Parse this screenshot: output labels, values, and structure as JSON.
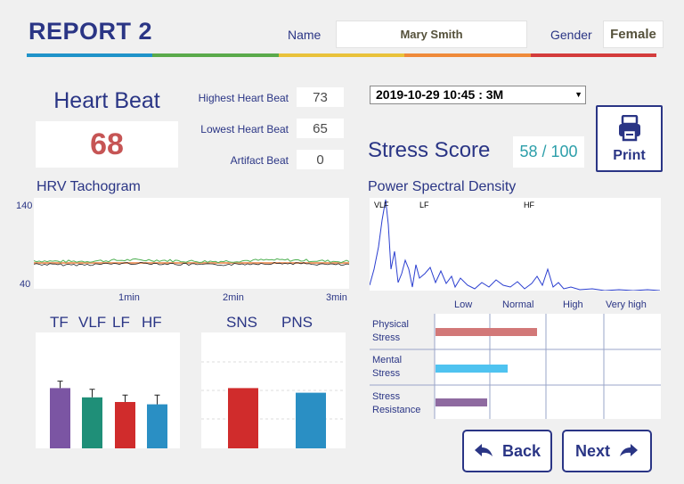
{
  "header": {
    "title": "REPORT 2",
    "name_label": "Name",
    "name_value": "Mary Smith",
    "gender_label": "Gender",
    "gender_value": "Female",
    "rainbow_colors": [
      "#1f93c9",
      "#5aaa4b",
      "#e9c23a",
      "#ef8a3a",
      "#d43c3c"
    ]
  },
  "heart_beat": {
    "title": "Heart Beat",
    "value": "68",
    "highest_label": "Highest Heart Beat",
    "highest_value": "73",
    "lowest_label": "Lowest Heart Beat",
    "lowest_value": "65",
    "artifact_label": "Artifact Beat",
    "artifact_value": "0"
  },
  "session_select": {
    "selected": "2019-10-29 10:45 : 3M"
  },
  "stress": {
    "title": "Stress Score",
    "value": "58 / 100"
  },
  "print_button": {
    "label": "Print",
    "icon": "printer-icon"
  },
  "hrv": {
    "title": "HRV Tachogram",
    "y_max": "140",
    "y_min": "40",
    "x_ticks": [
      "1min",
      "2min",
      "3min"
    ]
  },
  "psd": {
    "title": "Power Spectral Density",
    "bands": [
      "VLF",
      "LF",
      "HF"
    ]
  },
  "levels": {
    "headers": [
      "Low",
      "Normal",
      "High",
      "Very high"
    ],
    "rows": [
      {
        "line1": "Physical",
        "line2": "Stress",
        "color": "#d27878",
        "level": 0.45
      },
      {
        "line1": "Mental",
        "line2": "Stress",
        "color": "#4fc3f0",
        "level": 0.32
      },
      {
        "line1": "Stress",
        "line2": "Resistance",
        "color": "#8e6aa0",
        "level": 0.23
      }
    ]
  },
  "freq_bars": {
    "labels": [
      "TF",
      "VLF",
      "LF",
      "HF"
    ],
    "colors": [
      "#7b55a3",
      "#1f8f78",
      "#d02c2c",
      "#2a8fc4"
    ],
    "values": [
      0.52,
      0.44,
      0.4,
      0.38
    ],
    "errors": [
      0.06,
      0.07,
      0.06,
      0.08
    ]
  },
  "ans_bars": {
    "labels": [
      "SNS",
      "PNS"
    ],
    "colors": [
      "#d02c2c",
      "#2a8fc4"
    ],
    "values": [
      0.52,
      0.48
    ]
  },
  "nav": {
    "back_label": "Back",
    "next_label": "Next"
  }
}
